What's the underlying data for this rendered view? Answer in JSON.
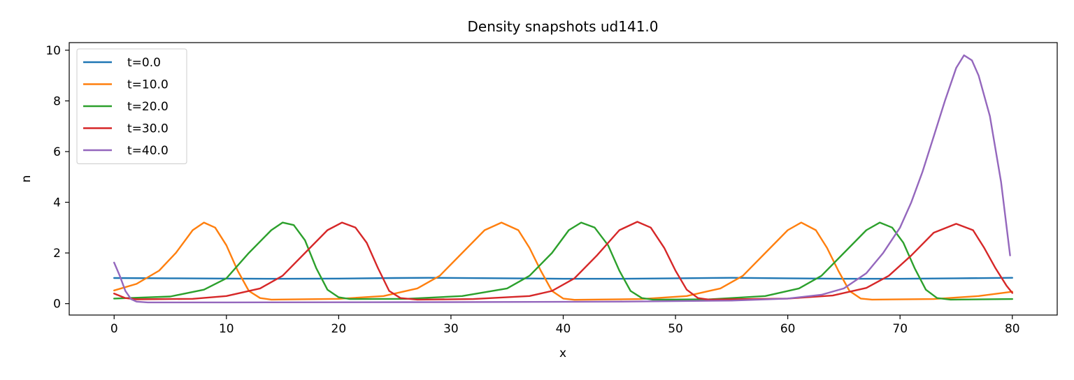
{
  "chart_data": {
    "type": "line",
    "title": "Density snapshots  ud141.0",
    "xlabel": "x",
    "ylabel": "n",
    "xlim": [
      -4,
      84
    ],
    "ylim": [
      -0.45,
      10.3
    ],
    "xticks": [
      0,
      10,
      20,
      30,
      40,
      50,
      60,
      70,
      80
    ],
    "yticks": [
      0,
      2,
      4,
      6,
      8,
      10
    ],
    "grid": false,
    "legend_position": "top-left",
    "series": [
      {
        "name": "t=0.0",
        "color": "#1f77b4",
        "points": [
          [
            0,
            1.01
          ],
          [
            5,
            1.0
          ],
          [
            10,
            0.99
          ],
          [
            15,
            0.98
          ],
          [
            20,
            0.99
          ],
          [
            25,
            1.01
          ],
          [
            28,
            1.02
          ],
          [
            35,
            1.0
          ],
          [
            40,
            0.98
          ],
          [
            45,
            0.98
          ],
          [
            50,
            1.0
          ],
          [
            55,
            1.02
          ],
          [
            60,
            1.0
          ],
          [
            65,
            0.98
          ],
          [
            70,
            0.98
          ],
          [
            75,
            1.0
          ],
          [
            80,
            1.02
          ]
        ]
      },
      {
        "name": "t=10.0",
        "color": "#ff7f0e",
        "points": [
          [
            0,
            0.52
          ],
          [
            2,
            0.78
          ],
          [
            4,
            1.3
          ],
          [
            5.5,
            2.0
          ],
          [
            7,
            2.9
          ],
          [
            8,
            3.2
          ],
          [
            9,
            3.0
          ],
          [
            10,
            2.3
          ],
          [
            11,
            1.3
          ],
          [
            12,
            0.5
          ],
          [
            13,
            0.22
          ],
          [
            14,
            0.16
          ],
          [
            20,
            0.19
          ],
          [
            24,
            0.3
          ],
          [
            27,
            0.6
          ],
          [
            29,
            1.1
          ],
          [
            31,
            2.0
          ],
          [
            33,
            2.9
          ],
          [
            34.5,
            3.2
          ],
          [
            36,
            2.9
          ],
          [
            37,
            2.2
          ],
          [
            38,
            1.3
          ],
          [
            39,
            0.5
          ],
          [
            40,
            0.2
          ],
          [
            41,
            0.15
          ],
          [
            47,
            0.18
          ],
          [
            51,
            0.3
          ],
          [
            54,
            0.6
          ],
          [
            56,
            1.1
          ],
          [
            58,
            2.0
          ],
          [
            60,
            2.9
          ],
          [
            61.2,
            3.2
          ],
          [
            62.5,
            2.9
          ],
          [
            63.5,
            2.2
          ],
          [
            64.5,
            1.3
          ],
          [
            65.5,
            0.5
          ],
          [
            66.5,
            0.2
          ],
          [
            67.5,
            0.16
          ],
          [
            73,
            0.18
          ],
          [
            77,
            0.3
          ],
          [
            80,
            0.47
          ]
        ]
      },
      {
        "name": "t=20.0",
        "color": "#2ca02c",
        "points": [
          [
            0,
            0.2
          ],
          [
            5,
            0.28
          ],
          [
            8,
            0.55
          ],
          [
            10,
            1.0
          ],
          [
            12,
            2.0
          ],
          [
            14,
            2.9
          ],
          [
            15,
            3.2
          ],
          [
            16,
            3.1
          ],
          [
            17,
            2.5
          ],
          [
            18,
            1.4
          ],
          [
            19,
            0.55
          ],
          [
            20,
            0.25
          ],
          [
            21,
            0.18
          ],
          [
            26,
            0.19
          ],
          [
            31,
            0.3
          ],
          [
            35,
            0.6
          ],
          [
            37,
            1.1
          ],
          [
            39,
            2.0
          ],
          [
            40.5,
            2.9
          ],
          [
            41.6,
            3.2
          ],
          [
            42.8,
            3.0
          ],
          [
            44,
            2.3
          ],
          [
            45,
            1.3
          ],
          [
            46,
            0.5
          ],
          [
            47,
            0.22
          ],
          [
            48,
            0.16
          ],
          [
            53,
            0.17
          ],
          [
            58,
            0.3
          ],
          [
            61,
            0.6
          ],
          [
            63,
            1.1
          ],
          [
            65,
            2.0
          ],
          [
            67,
            2.9
          ],
          [
            68.2,
            3.2
          ],
          [
            69.3,
            3.0
          ],
          [
            70.3,
            2.4
          ],
          [
            71.3,
            1.4
          ],
          [
            72.3,
            0.55
          ],
          [
            73.3,
            0.22
          ],
          [
            74.5,
            0.16
          ],
          [
            80,
            0.18
          ]
        ]
      },
      {
        "name": "t=30.0",
        "color": "#d62728",
        "points": [
          [
            0,
            0.4
          ],
          [
            1,
            0.22
          ],
          [
            2,
            0.17
          ],
          [
            7,
            0.19
          ],
          [
            10,
            0.3
          ],
          [
            13,
            0.6
          ],
          [
            15,
            1.1
          ],
          [
            17,
            2.0
          ],
          [
            19,
            2.9
          ],
          [
            20.3,
            3.2
          ],
          [
            21.5,
            3.0
          ],
          [
            22.5,
            2.4
          ],
          [
            23.5,
            1.4
          ],
          [
            24.5,
            0.5
          ],
          [
            25.5,
            0.22
          ],
          [
            27,
            0.16
          ],
          [
            32,
            0.18
          ],
          [
            37,
            0.3
          ],
          [
            39,
            0.5
          ],
          [
            41,
            1.0
          ],
          [
            43,
            1.9
          ],
          [
            45,
            2.9
          ],
          [
            46.6,
            3.23
          ],
          [
            47.8,
            3.0
          ],
          [
            49,
            2.2
          ],
          [
            50,
            1.3
          ],
          [
            51,
            0.55
          ],
          [
            52,
            0.22
          ],
          [
            53,
            0.16
          ],
          [
            60,
            0.2
          ],
          [
            64,
            0.32
          ],
          [
            67,
            0.62
          ],
          [
            69,
            1.1
          ],
          [
            71,
            1.9
          ],
          [
            73,
            2.8
          ],
          [
            75,
            3.15
          ],
          [
            76.5,
            2.9
          ],
          [
            77.5,
            2.2
          ],
          [
            78.5,
            1.4
          ],
          [
            79.5,
            0.7
          ],
          [
            80,
            0.42
          ]
        ]
      },
      {
        "name": "t=40.0",
        "color": "#9467bd",
        "points": [
          [
            0,
            1.62
          ],
          [
            0.5,
            1.1
          ],
          [
            1,
            0.5
          ],
          [
            1.5,
            0.18
          ],
          [
            2,
            0.08
          ],
          [
            3,
            0.05
          ],
          [
            10,
            0.05
          ],
          [
            30,
            0.06
          ],
          [
            45,
            0.08
          ],
          [
            55,
            0.12
          ],
          [
            60,
            0.2
          ],
          [
            63,
            0.35
          ],
          [
            65,
            0.6
          ],
          [
            67,
            1.2
          ],
          [
            68.5,
            2.0
          ],
          [
            70,
            3.0
          ],
          [
            71,
            4.0
          ],
          [
            72,
            5.2
          ],
          [
            73,
            6.6
          ],
          [
            74,
            8.0
          ],
          [
            75,
            9.3
          ],
          [
            75.7,
            9.8
          ],
          [
            76.4,
            9.6
          ],
          [
            77,
            9.0
          ],
          [
            78,
            7.4
          ],
          [
            79,
            4.8
          ],
          [
            79.8,
            1.9
          ]
        ]
      }
    ]
  }
}
